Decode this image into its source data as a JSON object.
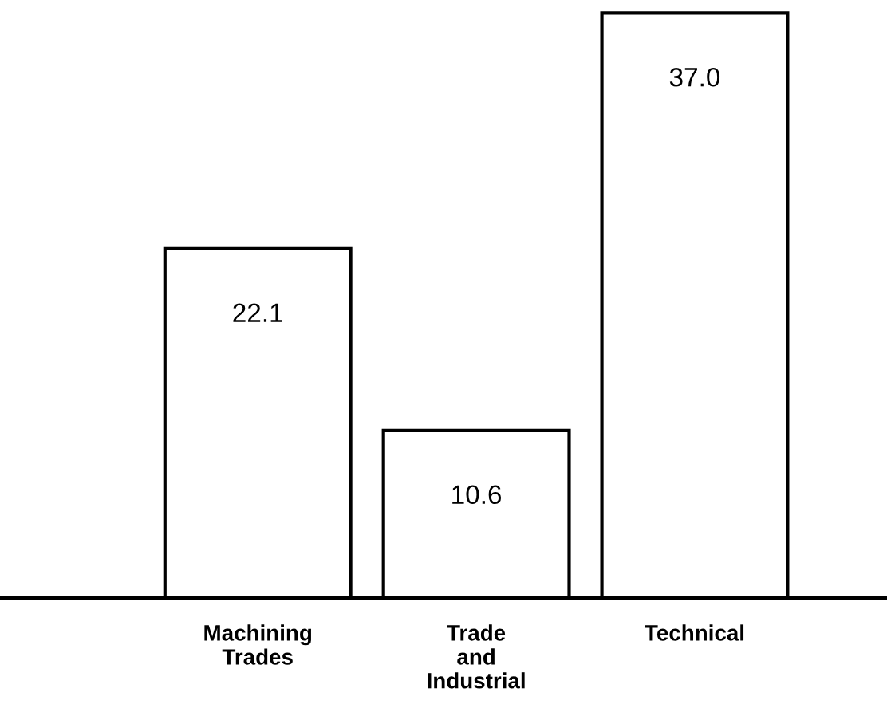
{
  "chart_data": {
    "type": "bar",
    "categories": [
      "Machining\nTrades",
      "Trade\nand\nIndustrial",
      "Technical"
    ],
    "values": [
      22.1,
      10.6,
      37.0
    ],
    "value_labels": [
      "22.1",
      "10.6",
      "37.0"
    ],
    "color": "#ffffff",
    "grid": false,
    "legend": false
  }
}
